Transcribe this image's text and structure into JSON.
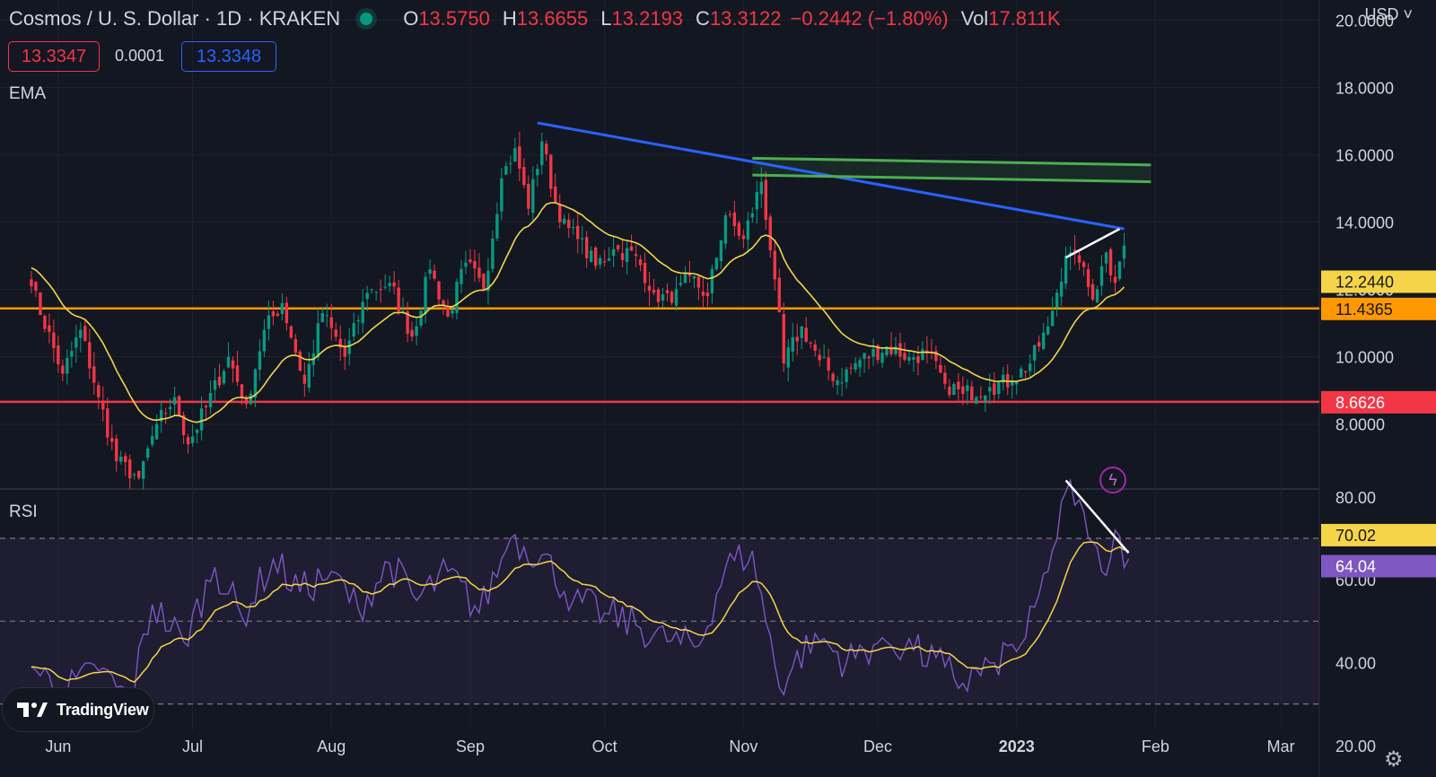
{
  "header": {
    "symbol": "Cosmos / U. S. Dollar · 1D · KRAKEN",
    "open_label": "O",
    "open": "13.5750",
    "high_label": "H",
    "high": "13.6655",
    "low_label": "L",
    "low": "13.2193",
    "close_label": "C",
    "close": "13.3122",
    "change": "−0.2442 (−1.80%)",
    "vol_label": "Vol",
    "vol": "17.811K",
    "currency": "USD ˅"
  },
  "trade": {
    "sell": "13.3347",
    "spread": "0.0001",
    "buy": "13.3348"
  },
  "branding": {
    "logo_text": "TradingView"
  },
  "icons": {
    "flash": "lightning-icon",
    "settings": "gear-icon"
  },
  "colors": {
    "background": "#131722",
    "up": "#089981",
    "down": "#f23645",
    "ema": "#f5d547",
    "rsi": "#7e57c2",
    "trend_blue": "#2962ff",
    "support_orange": "#ff9800",
    "support_red": "#f23645",
    "zone_green": "#4caf50"
  },
  "chart_data": [
    {
      "type": "candlestick",
      "indicator_label": "EMA",
      "x_ticks": [
        "Jun",
        "Jul",
        "Aug",
        "Sep",
        "Oct",
        "Nov",
        "Dec",
        "2023",
        "Feb",
        "Mar"
      ],
      "y_ticks": [
        "8.0000",
        "10.0000",
        "12.0000",
        "14.0000",
        "16.0000",
        "18.0000",
        "20.0000"
      ],
      "ylim": [
        6.1,
        20.6
      ],
      "price_labels": [
        {
          "value": "12.2440",
          "y": 12.244,
          "color": "#f5d547",
          "text_color": "#131722"
        },
        {
          "value": "11.4365",
          "y": 11.4365,
          "color": "#ff9800",
          "text_color": "#131722"
        },
        {
          "value": "8.6626",
          "y": 8.6626,
          "color": "#f23645",
          "text_color": "#ffffff"
        }
      ],
      "horizontal_lines": [
        {
          "name": "resistance-support",
          "y": 11.4365,
          "color": "#ff9800"
        },
        {
          "name": "support",
          "y": 8.6626,
          "color": "#f23645"
        }
      ],
      "trendlines": [
        {
          "name": "descending-resistance",
          "color": "#2962ff",
          "from": [
            "2022-09-16",
            16.95
          ],
          "to": [
            "2023-01-25",
            13.8
          ]
        },
        {
          "name": "zone-top",
          "color": "#4caf50",
          "from": [
            "2022-11-03",
            15.9
          ],
          "to": [
            "2023-01-31",
            15.7
          ]
        },
        {
          "name": "zone-bottom",
          "color": "#4caf50",
          "from": [
            "2022-11-03",
            15.4
          ],
          "to": [
            "2023-01-31",
            15.2
          ]
        },
        {
          "name": "higher-highs",
          "color": "#ffffff",
          "from": [
            "2023-01-12",
            12.95
          ],
          "to": [
            "2023-01-24",
            13.8
          ]
        }
      ],
      "ohlc_anchors": [
        [
          "2022-05-26",
          12.1
        ],
        [
          "2022-06-02",
          9.5
        ],
        [
          "2022-06-06",
          10.8
        ],
        [
          "2022-06-10",
          8.8
        ],
        [
          "2022-06-14",
          6.9
        ],
        [
          "2022-06-19",
          6.4
        ],
        [
          "2022-06-23",
          8.0
        ],
        [
          "2022-06-27",
          8.8
        ],
        [
          "2022-06-30",
          7.4
        ],
        [
          "2022-07-04",
          8.5
        ],
        [
          "2022-07-09",
          10.0
        ],
        [
          "2022-07-13",
          8.6
        ],
        [
          "2022-07-17",
          10.8
        ],
        [
          "2022-07-21",
          11.6
        ],
        [
          "2022-07-26",
          9.2
        ],
        [
          "2022-07-30",
          11.3
        ],
        [
          "2022-08-04",
          10.0
        ],
        [
          "2022-08-09",
          11.9
        ],
        [
          "2022-08-14",
          12.2
        ],
        [
          "2022-08-19",
          10.6
        ],
        [
          "2022-08-23",
          12.6
        ],
        [
          "2022-08-27",
          11.2
        ],
        [
          "2022-08-31",
          12.8
        ],
        [
          "2022-09-04",
          12.0
        ],
        [
          "2022-09-08",
          15.3
        ],
        [
          "2022-09-11",
          16.2
        ],
        [
          "2022-09-14",
          14.4
        ],
        [
          "2022-09-17",
          16.4
        ],
        [
          "2022-09-21",
          14.0
        ],
        [
          "2022-09-25",
          13.5
        ],
        [
          "2022-09-29",
          12.7
        ],
        [
          "2022-10-03",
          13.2
        ],
        [
          "2022-10-08",
          13.0
        ],
        [
          "2022-10-12",
          11.9
        ],
        [
          "2022-10-16",
          11.6
        ],
        [
          "2022-10-20",
          12.4
        ],
        [
          "2022-10-24",
          11.8
        ],
        [
          "2022-10-28",
          14.2
        ],
        [
          "2022-11-01",
          13.5
        ],
        [
          "2022-11-05",
          15.2
        ],
        [
          "2022-11-08",
          12.3
        ],
        [
          "2022-11-10",
          9.8
        ],
        [
          "2022-11-14",
          10.9
        ],
        [
          "2022-11-18",
          9.9
        ],
        [
          "2022-11-22",
          9.3
        ],
        [
          "2022-11-27",
          9.9
        ],
        [
          "2022-12-03",
          10.3
        ],
        [
          "2022-12-08",
          10.0
        ],
        [
          "2022-12-12",
          10.1
        ],
        [
          "2022-12-16",
          9.2
        ],
        [
          "2022-12-20",
          8.9
        ],
        [
          "2022-12-26",
          9.1
        ],
        [
          "2022-12-31",
          9.3
        ],
        [
          "2023-01-04",
          9.8
        ],
        [
          "2023-01-08",
          10.9
        ],
        [
          "2023-01-12",
          13.0
        ],
        [
          "2023-01-15",
          12.8
        ],
        [
          "2023-01-18",
          11.7
        ],
        [
          "2023-01-21",
          13.1
        ],
        [
          "2023-01-23",
          12.2
        ],
        [
          "2023-01-25",
          13.3
        ]
      ]
    },
    {
      "type": "line",
      "indicator_label": "RSI",
      "y_ticks": [
        "20.00",
        "40.00",
        "60.00",
        "80.00"
      ],
      "ylim": [
        18,
        83
      ],
      "band": [
        30,
        70
      ],
      "dashed_levels": [
        70,
        50,
        30
      ],
      "value_labels": [
        {
          "value": "70.02",
          "y": 70.02,
          "color": "#f5d547",
          "text_color": "#131722"
        },
        {
          "value": "64.04",
          "y": 64.04,
          "color": "#7e57c2",
          "text_color": "#ffffff"
        }
      ],
      "trendlines": [
        {
          "name": "rsi-divergence",
          "color": "#ffffff",
          "from": [
            "2023-01-12",
            84.0
          ],
          "to": [
            "2023-01-26",
            66.5
          ]
        }
      ],
      "rsi_anchors": [
        [
          "2022-05-26",
          39
        ],
        [
          "2022-06-02",
          33
        ],
        [
          "2022-06-10",
          38
        ],
        [
          "2022-06-17",
          31
        ],
        [
          "2022-06-22",
          54
        ],
        [
          "2022-06-29",
          45
        ],
        [
          "2022-07-06",
          63
        ],
        [
          "2022-07-12",
          51
        ],
        [
          "2022-07-19",
          65
        ],
        [
          "2022-07-25",
          57
        ],
        [
          "2022-08-01",
          62
        ],
        [
          "2022-08-07",
          53
        ],
        [
          "2022-08-14",
          64
        ],
        [
          "2022-08-20",
          55
        ],
        [
          "2022-08-27",
          62
        ],
        [
          "2022-09-03",
          52
        ],
        [
          "2022-09-10",
          70
        ],
        [
          "2022-09-17",
          66
        ],
        [
          "2022-09-24",
          55
        ],
        [
          "2022-10-01",
          52
        ],
        [
          "2022-10-08",
          49
        ],
        [
          "2022-10-15",
          45
        ],
        [
          "2022-10-22",
          44
        ],
        [
          "2022-10-28",
          63
        ],
        [
          "2022-11-03",
          67
        ],
        [
          "2022-11-09",
          34
        ],
        [
          "2022-11-17",
          47
        ],
        [
          "2022-11-24",
          40
        ],
        [
          "2022-12-02",
          46
        ],
        [
          "2022-12-09",
          43
        ],
        [
          "2022-12-16",
          39
        ],
        [
          "2022-12-20",
          35
        ],
        [
          "2022-12-27",
          40
        ],
        [
          "2023-01-03",
          46
        ],
        [
          "2023-01-08",
          62
        ],
        [
          "2023-01-13",
          84
        ],
        [
          "2023-01-17",
          70
        ],
        [
          "2023-01-20",
          62
        ],
        [
          "2023-01-23",
          72
        ],
        [
          "2023-01-26",
          65
        ]
      ]
    }
  ]
}
